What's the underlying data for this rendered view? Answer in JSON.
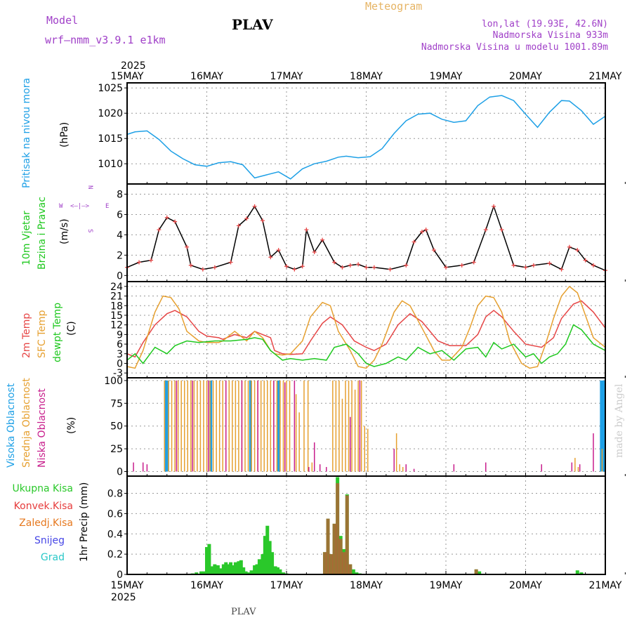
{
  "header": {
    "model_label": "Model",
    "model_name": "wrf—nmm_v3.9.1  e1km",
    "station": "PLAV",
    "product": "Meteogram",
    "lonlat": "lon,lat (19.93E, 42.6N)",
    "altitude": "Nadmorska Visina 933m",
    "model_altitude": "Nadmorska Visina u modelu 1001.89m",
    "year_top": "2025",
    "year_bottom": "2025",
    "footer_station": "PLAV",
    "credit": "made by Angel"
  },
  "colors": {
    "pressure": "#1ea0e6",
    "temp2m": "#e64646",
    "sfc": "#e6a030",
    "dewpt": "#1ec81e",
    "high_cloud": "#1ea0e6",
    "mid_cloud": "#e6a030",
    "low_cloud": "#c81e8c",
    "total_precip": "#2ac82a",
    "conv_precip": "#e63c3c",
    "frozen": "#e6781e",
    "snow": "#4646e6",
    "hail": "#2ac8c8",
    "wind_speed": "#000000",
    "wind_dir": "#e64646"
  },
  "time_axis": [
    "15MAY",
    "16MAY",
    "17MAY",
    "18MAY",
    "19MAY",
    "20MAY",
    "21MAY"
  ],
  "chart_data": [
    {
      "id": "pressure",
      "type": "line",
      "ylabel": "Pritisak na nivou mora",
      "unit": "(hPa)",
      "yticks": [
        1010,
        1015,
        1020,
        1025
      ],
      "ylim": [
        1006,
        1026
      ],
      "grid": true,
      "series": [
        {
          "x": [
            0,
            0.1,
            0.25,
            0.4,
            0.55,
            0.7,
            0.85,
            1,
            1.15,
            1.3,
            1.45,
            1.6,
            1.75,
            1.9,
            2.05,
            2.2,
            2.35,
            2.5,
            2.65,
            2.75,
            2.9,
            3.05,
            3.2,
            3.35,
            3.5,
            3.65,
            3.8,
            3.95,
            4.1,
            4.25,
            4.4,
            4.55,
            4.7,
            4.85,
            5,
            5.15,
            5.3,
            5.45,
            5.55,
            5.7,
            5.85,
            6
          ],
          "values": [
            1015.8,
            1016.3,
            1016.5,
            1014.8,
            1012.5,
            1011,
            1009.8,
            1009.5,
            1010.2,
            1010.4,
            1009.8,
            1007.2,
            1007.8,
            1008.4,
            1007,
            1009,
            1010,
            1010.5,
            1011.3,
            1011.5,
            1011.2,
            1011.4,
            1013,
            1016,
            1018.5,
            1019.8,
            1020,
            1018.8,
            1018.2,
            1018.5,
            1021.5,
            1023.2,
            1023.5,
            1022.5,
            1019.8,
            1017.2,
            1020.2,
            1022.5,
            1022.4,
            1020.5,
            1017.8,
            1019.4
          ]
        }
      ]
    },
    {
      "id": "wind",
      "type": "line",
      "ylabel": "10m Vjetar Brzina i Pravac",
      "unit": "(m/s)",
      "compass": [
        "N",
        "W",
        "E",
        "S"
      ],
      "yticks": [
        0,
        2,
        4,
        6,
        8
      ],
      "ylim": [
        -0.6,
        9
      ],
      "grid": true,
      "series": [
        {
          "name": "speed",
          "x": [
            0,
            0.15,
            0.3,
            0.4,
            0.5,
            0.6,
            0.75,
            0.8,
            0.95,
            1.1,
            1.3,
            1.4,
            1.5,
            1.6,
            1.7,
            1.8,
            1.9,
            2,
            2.1,
            2.2,
            2.25,
            2.35,
            2.45,
            2.6,
            2.7,
            2.8,
            2.9,
            3,
            3.1,
            3.3,
            3.5,
            3.6,
            3.7,
            3.75,
            3.85,
            4,
            4.2,
            4.35,
            4.5,
            4.6,
            4.7,
            4.85,
            5,
            5.1,
            5.3,
            5.45,
            5.55,
            5.65,
            5.75,
            5.85,
            6
          ],
          "values": [
            0.8,
            1.3,
            1.5,
            4.5,
            5.7,
            5.3,
            2.8,
            1,
            0.6,
            0.8,
            1.3,
            4.9,
            5.6,
            6.8,
            5.4,
            1.8,
            2.5,
            0.9,
            0.6,
            0.9,
            4.5,
            2.3,
            3.5,
            1.3,
            0.8,
            1,
            1.1,
            0.8,
            0.8,
            0.6,
            1,
            3.3,
            4.3,
            4.5,
            2.5,
            0.8,
            1,
            1.3,
            4.5,
            6.8,
            4.5,
            1,
            0.8,
            1,
            1.2,
            0.6,
            2.8,
            2.5,
            1.5,
            1,
            0.5
          ]
        }
      ]
    },
    {
      "id": "temperature",
      "type": "line",
      "ylabel": [
        "2m Temp",
        "SFC Temp",
        "dewpt Temp"
      ],
      "unit": "(C)",
      "yticks": [
        -3,
        0,
        3,
        6,
        9,
        12,
        15,
        18,
        21,
        24
      ],
      "ylim": [
        -4.5,
        25.5
      ],
      "grid": true,
      "series": [
        {
          "name": "2m Temp",
          "x": [
            0,
            0.1,
            0.2,
            0.35,
            0.5,
            0.6,
            0.75,
            0.9,
            1,
            1.15,
            1.2,
            1.35,
            1.5,
            1.6,
            1.7,
            1.8,
            1.85,
            1.95,
            2.05,
            2.2,
            2.3,
            2.45,
            2.55,
            2.7,
            2.85,
            3,
            3.1,
            3.25,
            3.4,
            3.55,
            3.7,
            3.9,
            4.05,
            4.25,
            4.4,
            4.5,
            4.6,
            4.7,
            4.85,
            5,
            5.2,
            5.35,
            5.45,
            5.6,
            5.7,
            5.85,
            6
          ],
          "values": [
            3,
            2,
            6.5,
            12,
            15.5,
            16.5,
            14.5,
            10,
            8.5,
            8,
            7.5,
            9,
            8,
            10,
            9,
            8,
            4,
            3,
            2.8,
            3,
            7,
            12.5,
            14.5,
            12,
            7,
            5,
            4,
            6,
            12,
            15.5,
            13,
            7,
            5.5,
            5.5,
            9,
            14.5,
            16.5,
            14.5,
            10,
            6,
            5,
            8,
            14,
            18.5,
            19.5,
            16,
            11
          ]
        },
        {
          "name": "SFC Temp",
          "x": [
            0,
            0.1,
            0.2,
            0.35,
            0.45,
            0.55,
            0.65,
            0.75,
            0.9,
            1,
            1.15,
            1.2,
            1.35,
            1.5,
            1.6,
            1.7,
            1.8,
            1.85,
            1.95,
            2.05,
            2.2,
            2.3,
            2.45,
            2.55,
            2.65,
            2.8,
            2.9,
            3,
            3.1,
            3.2,
            3.35,
            3.45,
            3.55,
            3.7,
            3.85,
            3.95,
            4.05,
            4.2,
            4.3,
            4.4,
            4.5,
            4.6,
            4.7,
            4.8,
            4.95,
            5.05,
            5.15,
            5.25,
            5.35,
            5.45,
            5.55,
            5.65,
            5.75,
            5.85,
            6
          ],
          "values": [
            -1,
            -1.5,
            4,
            16,
            21,
            20.5,
            17,
            10,
            7,
            6.5,
            6.5,
            7,
            10,
            7,
            10,
            8,
            4,
            3,
            2.6,
            3,
            7,
            14.5,
            19,
            18,
            10,
            4,
            -1,
            -1.5,
            1,
            6,
            16,
            19.5,
            18,
            11,
            4,
            1,
            1,
            5,
            11,
            18,
            21,
            20.5,
            16,
            7,
            0,
            -1.5,
            -1,
            6,
            14,
            21,
            24,
            22,
            15,
            8,
            5
          ]
        },
        {
          "name": "dewpt Temp",
          "x": [
            0,
            0.1,
            0.2,
            0.35,
            0.5,
            0.6,
            0.75,
            0.9,
            1.1,
            1.3,
            1.5,
            1.6,
            1.7,
            1.8,
            1.95,
            2.05,
            2.2,
            2.35,
            2.5,
            2.6,
            2.75,
            2.9,
            3,
            3.1,
            3.25,
            3.4,
            3.5,
            3.65,
            3.8,
            3.95,
            4.1,
            4.25,
            4.4,
            4.5,
            4.6,
            4.7,
            4.85,
            5,
            5.1,
            5.2,
            5.3,
            5.4,
            5.5,
            5.6,
            5.7,
            5.85,
            6
          ],
          "values": [
            1,
            3,
            0,
            5,
            3,
            5.5,
            7,
            6.5,
            7,
            7,
            7.5,
            8,
            7.5,
            4,
            1,
            1.5,
            1,
            1.5,
            1,
            5,
            6,
            3,
            0,
            -1,
            0,
            2,
            1,
            5,
            3,
            4,
            1,
            4.5,
            5,
            2,
            6.5,
            4.5,
            6,
            2,
            3,
            0,
            2,
            3,
            6,
            12,
            10.5,
            6,
            4
          ]
        }
      ]
    },
    {
      "id": "cloud",
      "type": "bar",
      "ylabel": [
        "Visoka Oblacnost",
        "Srednja Oblacnost",
        "Niska Oblacnost"
      ],
      "unit": "(%)",
      "yticks": [
        0,
        25,
        50,
        75,
        100
      ],
      "ylim": [
        -5,
        103
      ],
      "grid": true,
      "series": [
        {
          "name": "Visoka Oblacnost",
          "x": [
            0.48,
            0.51,
            1.05,
            1.55,
            1.9,
            5.95,
            5.98
          ],
          "values": [
            100,
            100,
            100,
            100,
            100,
            100,
            100
          ]
        },
        {
          "name": "Srednja Oblacnost",
          "x": [
            0.47,
            0.52,
            0.56,
            0.6,
            0.64,
            0.68,
            0.72,
            0.76,
            0.8,
            0.84,
            0.88,
            0.92,
            0.96,
            1,
            1.04,
            1.08,
            1.12,
            1.16,
            1.2,
            1.24,
            1.28,
            1.32,
            1.36,
            1.4,
            1.44,
            1.48,
            1.52,
            1.56,
            1.6,
            1.64,
            1.68,
            1.72,
            1.76,
            1.8,
            1.84,
            1.88,
            1.92,
            1.96,
            2,
            2.04,
            2.12,
            2.16,
            2.22,
            2.27,
            2.32,
            2.58,
            2.62,
            2.66,
            2.7,
            2.74,
            2.78,
            2.82,
            2.86,
            2.9,
            2.94,
            2.98,
            3.02,
            3.38,
            3.42,
            3.46,
            5.62,
            5.66,
            5.96
          ],
          "values": [
            100,
            100,
            100,
            100,
            100,
            100,
            100,
            100,
            100,
            100,
            100,
            100,
            100,
            100,
            100,
            100,
            100,
            100,
            100,
            100,
            100,
            100,
            100,
            100,
            100,
            100,
            100,
            100,
            100,
            100,
            100,
            100,
            100,
            100,
            100,
            100,
            100,
            100,
            100,
            100,
            85,
            65,
            100,
            100,
            10,
            100,
            100,
            100,
            80,
            100,
            100,
            100,
            90,
            100,
            100,
            50,
            47,
            42,
            8,
            5,
            15,
            5,
            25
          ]
        },
        {
          "name": "Niska Oblacnost",
          "x": [
            0.08,
            0.2,
            0.25,
            0.62,
            0.82,
            1.02,
            1.24,
            1.44,
            1.64,
            1.84,
            1.98,
            2.1,
            2.28,
            2.35,
            2.42,
            2.5,
            2.8,
            2.92,
            3.35,
            3.5,
            3.6,
            4.1,
            4.5,
            5.2,
            5.58,
            5.68,
            5.85
          ],
          "values": [
            10,
            10,
            8,
            100,
            100,
            100,
            100,
            100,
            100,
            100,
            98,
            100,
            5,
            32,
            8,
            5,
            60,
            100,
            25,
            8,
            3,
            8,
            10,
            8,
            10,
            8,
            42
          ]
        }
      ]
    },
    {
      "id": "precip",
      "type": "bar",
      "ylabel": "1hr Precip (mm)",
      "yticks": [
        0,
        0.2,
        0.4,
        0.6,
        0.8
      ],
      "ylim": [
        0,
        0.97
      ],
      "grid": true,
      "legend": [
        "Ukupna Kisa",
        "Konvek.Kisa",
        "Zaledj.Kisa",
        "Snijeg",
        "Grad"
      ],
      "series": [
        {
          "name": "Ukupna Kisa",
          "x": [
            0.82,
            0.87,
            0.93,
            0.97,
            1,
            1.03,
            1.06,
            1.1,
            1.14,
            1.17,
            1.21,
            1.24,
            1.27,
            1.3,
            1.33,
            1.36,
            1.4,
            1.43,
            1.46,
            1.49,
            1.52,
            1.56,
            1.6,
            1.63,
            1.66,
            1.7,
            1.73,
            1.76,
            1.79,
            1.82,
            1.86,
            1.89,
            1.92,
            1.96,
            2,
            2.03,
            2.06,
            2.1,
            2.13,
            2.16,
            2.2,
            2.24,
            2.28,
            2.32,
            2.36,
            2.4,
            2.44,
            2.48,
            2.52,
            2.56,
            2.6,
            2.64,
            2.68,
            2.72,
            2.76,
            2.8,
            2.84,
            2.88,
            2.92,
            2.96,
            3,
            4.38,
            4.42,
            5.65,
            5.7
          ],
          "values": [
            0.01,
            0.02,
            0.03,
            0.03,
            0.27,
            0.3,
            0.08,
            0.1,
            0.09,
            0.06,
            0.1,
            0.12,
            0.1,
            0.12,
            0.09,
            0.12,
            0.13,
            0.14,
            0.07,
            0.03,
            0.02,
            0.04,
            0.09,
            0.1,
            0.15,
            0.2,
            0.38,
            0.48,
            0.33,
            0.22,
            0.08,
            0.07,
            0.05,
            0.02,
            0.01,
            0,
            0,
            0,
            0,
            0,
            0,
            0,
            0,
            0,
            0,
            0,
            0,
            0.22,
            0.55,
            0.2,
            0.5,
            0.96,
            0.38,
            0.25,
            0.79,
            0.1,
            0.05,
            0.02,
            0.01,
            0,
            0,
            0.05,
            0.03,
            0.04,
            0.02
          ]
        },
        {
          "name": "Konvek.Kisa",
          "x": [
            2.48,
            2.52,
            2.56,
            2.6,
            2.64,
            2.68,
            2.72,
            2.76,
            2.8,
            4.38
          ],
          "values": [
            0.22,
            0.55,
            0.2,
            0.5,
            0.9,
            0.35,
            0.22,
            0.78,
            0.1,
            0.05
          ]
        }
      ]
    }
  ]
}
